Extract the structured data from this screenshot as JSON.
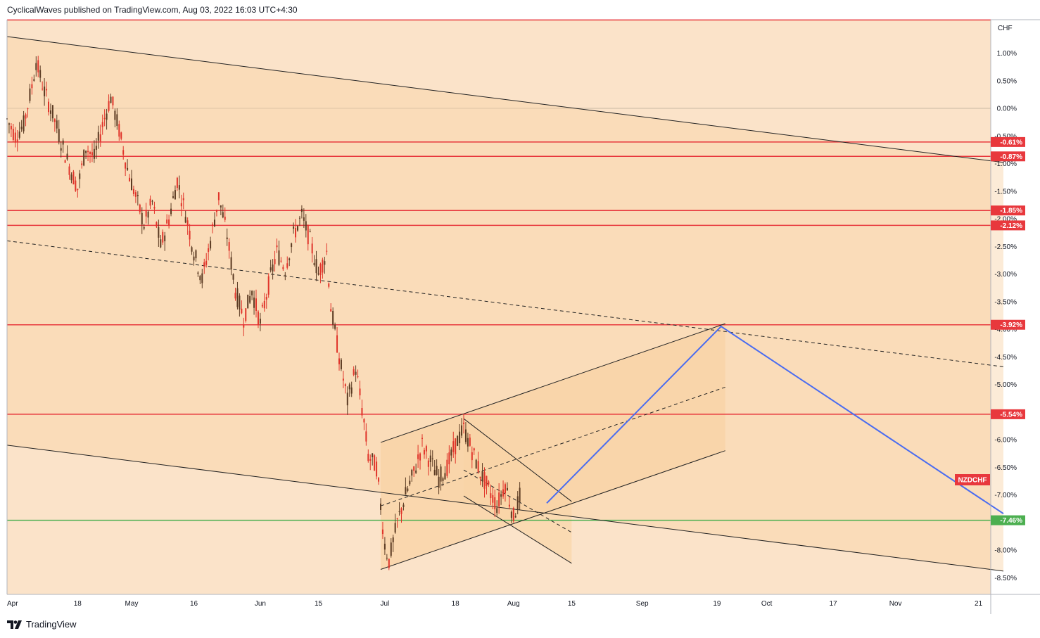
{
  "header": {
    "text": "CyclicalWaves published on TradingView.com, Aug 03, 2022 16:03 UTC+4:30"
  },
  "footer": {
    "brand": "TradingView"
  },
  "colors": {
    "background": "#fbe3c9",
    "channel_fill": "#fad3a4",
    "candle_up": "#5a3a22",
    "candle_down": "#e0342a",
    "level_red": "#e8383d",
    "level_green": "#4caf50",
    "projection_blue": "#4a6cf0",
    "trendline": "#222222"
  },
  "chart_data": {
    "type": "candlestick",
    "title": "",
    "symbol_label": "NZDCHF",
    "currency_label": "CHF",
    "y_axis": {
      "unit": "percent",
      "ticks": [
        "1.00%",
        "0.50%",
        "0.00%",
        "-0.50%",
        "-1.00%",
        "-1.50%",
        "-2.00%",
        "-2.50%",
        "-3.00%",
        "-3.50%",
        "-4.00%",
        "-4.50%",
        "-5.00%",
        "-5.50%",
        "-6.00%",
        "-6.50%",
        "-7.00%",
        "-7.50%",
        "-8.00%",
        "-8.50%"
      ],
      "range": [
        -8.8,
        1.45
      ]
    },
    "x_axis": {
      "ticks": [
        "Apr",
        "18",
        "May",
        "16",
        "Jun",
        "15",
        "Jul",
        "18",
        "Aug",
        "15",
        "Sep",
        "19",
        "Oct",
        "17",
        "Nov",
        "21"
      ],
      "range": [
        "2022-04-01",
        "2022-11-27"
      ]
    },
    "horizontal_levels": [
      {
        "label": "-0.61%",
        "value": -0.61,
        "color": "red"
      },
      {
        "label": "-0.87%",
        "value": -0.87,
        "color": "red"
      },
      {
        "label": "-1.85%",
        "value": -1.85,
        "color": "red"
      },
      {
        "label": "-2.12%",
        "value": -2.12,
        "color": "red"
      },
      {
        "label": "-3.92%",
        "value": -3.92,
        "color": "red"
      },
      {
        "label": "-5.54%",
        "value": -5.54,
        "color": "red"
      },
      {
        "label": "-7.46%",
        "value": -7.46,
        "color": "green"
      }
    ],
    "top_level": {
      "value": 1.6,
      "color": "red"
    },
    "zero_line": 0.0,
    "trend_channel": {
      "upper": {
        "start": [
          "2022-04-01",
          1.3
        ],
        "end": [
          "2022-11-27",
          -0.98
        ]
      },
      "middle_dashed": {
        "start": [
          "2022-04-01",
          -2.4
        ],
        "end": [
          "2022-11-27",
          -4.68
        ]
      },
      "lower": {
        "start": [
          "2022-04-01",
          -6.1
        ],
        "end": [
          "2022-11-27",
          -8.38
        ]
      }
    },
    "rising_channel": {
      "upper": {
        "start": [
          "2022-06-30",
          -6.05
        ],
        "end": [
          "2022-09-21",
          -3.9
        ]
      },
      "middle_dashed": {
        "start": [
          "2022-06-30",
          -7.2
        ],
        "end": [
          "2022-09-21",
          -5.05
        ]
      },
      "lower": {
        "start": [
          "2022-06-30",
          -8.35
        ],
        "end": [
          "2022-09-21",
          -6.2
        ]
      }
    },
    "falling_channel": {
      "upper": {
        "start": [
          "2022-07-20",
          -5.62
        ],
        "end": [
          "2022-08-15",
          -7.12
        ]
      },
      "middle_dashed": {
        "start": [
          "2022-07-20",
          -6.55
        ],
        "end": [
          "2022-08-15",
          -7.68
        ]
      },
      "lower": {
        "start": [
          "2022-07-20",
          -7.02
        ],
        "end": [
          "2022-08-15",
          -8.24
        ]
      }
    },
    "projection": [
      [
        "2022-08-09",
        -7.15
      ],
      [
        "2022-09-20",
        -3.95
      ],
      [
        "2022-11-27",
        -7.34
      ]
    ],
    "price_series": [
      [
        "2022-04-01",
        -0.2
      ],
      [
        "2022-04-03",
        -0.5
      ],
      [
        "2022-04-05",
        -0.3
      ],
      [
        "2022-04-07",
        0.4
      ],
      [
        "2022-04-08",
        0.85
      ],
      [
        "2022-04-10",
        0.3
      ],
      [
        "2022-04-12",
        -0.1
      ],
      [
        "2022-04-14",
        -0.6
      ],
      [
        "2022-04-16",
        -1.05
      ],
      [
        "2022-04-18",
        -1.45
      ],
      [
        "2022-04-20",
        -0.7
      ],
      [
        "2022-04-22",
        -0.9
      ],
      [
        "2022-04-24",
        -0.3
      ],
      [
        "2022-04-26",
        0.2
      ],
      [
        "2022-04-28",
        -0.4
      ],
      [
        "2022-04-30",
        -1.1
      ],
      [
        "2022-05-02",
        -1.6
      ],
      [
        "2022-05-04",
        -2.1
      ],
      [
        "2022-05-06",
        -1.7
      ],
      [
        "2022-05-08",
        -2.5
      ],
      [
        "2022-05-10",
        -2.0
      ],
      [
        "2022-05-12",
        -1.3
      ],
      [
        "2022-05-14",
        -1.9
      ],
      [
        "2022-05-16",
        -2.6
      ],
      [
        "2022-05-18",
        -3.1
      ],
      [
        "2022-05-20",
        -2.4
      ],
      [
        "2022-05-22",
        -1.6
      ],
      [
        "2022-05-24",
        -2.3
      ],
      [
        "2022-05-26",
        -3.3
      ],
      [
        "2022-05-28",
        -3.8
      ],
      [
        "2022-05-30",
        -3.3
      ],
      [
        "2022-06-01",
        -3.9
      ],
      [
        "2022-06-03",
        -3.2
      ],
      [
        "2022-06-05",
        -2.6
      ],
      [
        "2022-06-07",
        -2.9
      ],
      [
        "2022-06-09",
        -2.3
      ],
      [
        "2022-06-11",
        -1.95
      ],
      [
        "2022-06-13",
        -2.4
      ],
      [
        "2022-06-15",
        -3.0
      ],
      [
        "2022-06-17",
        -2.6
      ],
      [
        "2022-06-18",
        -3.6
      ],
      [
        "2022-06-20",
        -4.5
      ],
      [
        "2022-06-22",
        -5.3
      ],
      [
        "2022-06-24",
        -4.7
      ],
      [
        "2022-06-26",
        -5.7
      ],
      [
        "2022-06-27",
        -6.3
      ],
      [
        "2022-06-29",
        -6.5
      ],
      [
        "2022-06-30",
        -7.2
      ],
      [
        "2022-07-01",
        -7.9
      ],
      [
        "2022-07-02",
        -8.2
      ],
      [
        "2022-07-04",
        -7.5
      ],
      [
        "2022-07-06",
        -7.0
      ],
      [
        "2022-07-08",
        -6.6
      ],
      [
        "2022-07-10",
        -6.1
      ],
      [
        "2022-07-12",
        -6.4
      ],
      [
        "2022-07-14",
        -6.7
      ],
      [
        "2022-07-16",
        -6.5
      ],
      [
        "2022-07-18",
        -6.1
      ],
      [
        "2022-07-20",
        -5.8
      ],
      [
        "2022-07-22",
        -6.2
      ],
      [
        "2022-07-24",
        -6.6
      ],
      [
        "2022-07-26",
        -6.9
      ],
      [
        "2022-07-28",
        -7.2
      ],
      [
        "2022-07-30",
        -6.8
      ],
      [
        "2022-08-01",
        -7.4
      ],
      [
        "2022-08-03",
        -6.9
      ]
    ]
  }
}
